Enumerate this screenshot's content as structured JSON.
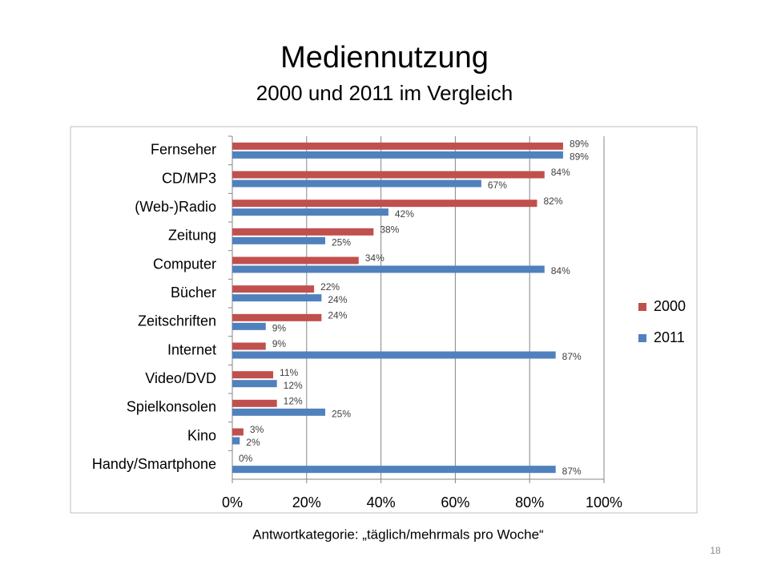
{
  "chart_data": {
    "type": "hbar",
    "title": "Mediennutzung",
    "subtitle": "2000 und 2011 im Vergleich",
    "note": "Antwortkategorie: „täglich/mehrmals pro Woche“",
    "page_number": "18",
    "categories": [
      "Fernseher",
      "CD/MP3",
      "(Web-)Radio",
      "Zeitung",
      "Computer",
      "Bücher",
      "Zeitschriften",
      "Internet",
      "Video/DVD",
      "Spielkonsolen",
      "Kino",
      "Handy/Smartphone"
    ],
    "series": [
      {
        "name": "2000",
        "color": "#c0504d",
        "values": [
          89,
          84,
          82,
          38,
          34,
          22,
          24,
          9,
          11,
          12,
          3,
          0
        ],
        "value_labels": [
          "89%",
          "84%",
          "82%",
          "38%",
          "34%",
          "22%",
          "24%",
          "9%",
          "11%",
          "12%",
          "3%",
          "0%"
        ]
      },
      {
        "name": "2011",
        "color": "#4f81bd",
        "values": [
          89,
          67,
          42,
          25,
          84,
          24,
          9,
          87,
          12,
          25,
          2,
          87
        ],
        "value_labels": [
          "89%",
          "67%",
          "42%",
          "25%",
          "84%",
          "24%",
          "9%",
          "87%",
          "12%",
          "25%",
          "2%",
          "87%"
        ]
      }
    ],
    "xlim": [
      0,
      100
    ],
    "xticks": [
      {
        "value": 0,
        "label": "0%"
      },
      {
        "value": 20,
        "label": "20%"
      },
      {
        "value": 40,
        "label": "40%"
      },
      {
        "value": 60,
        "label": "60%"
      },
      {
        "value": 80,
        "label": "80%"
      },
      {
        "value": 100,
        "label": "100%"
      }
    ],
    "grid": true,
    "legend": "right"
  }
}
